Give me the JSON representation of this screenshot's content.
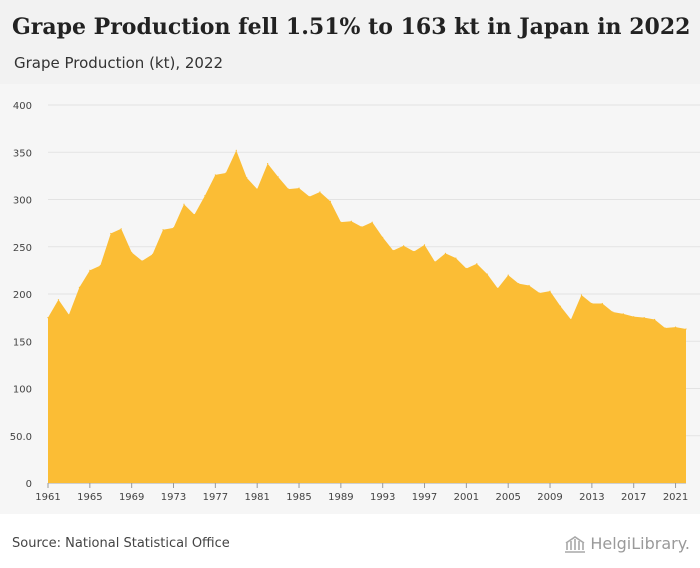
{
  "header": {
    "title": "Grape Production fell 1.51% to 163 kt in Japan in 2022",
    "subtitle": "Grape Production (kt), 2022"
  },
  "footer": {
    "source": "Source: National Statistical Office",
    "brand": "HelgiLibrary."
  },
  "colors": {
    "fill": "#fbbd35",
    "header_bg": "#f2f2f2",
    "plot_bg": "#f6f6f6",
    "grid": "#e3e3e3"
  },
  "chart_data": {
    "type": "area",
    "x": [
      1961,
      1962,
      1963,
      1964,
      1965,
      1966,
      1967,
      1968,
      1969,
      1970,
      1971,
      1972,
      1973,
      1974,
      1975,
      1976,
      1977,
      1978,
      1979,
      1980,
      1981,
      1982,
      1983,
      1984,
      1985,
      1986,
      1987,
      1988,
      1989,
      1990,
      1991,
      1992,
      1993,
      1994,
      1995,
      1996,
      1997,
      1998,
      1999,
      2000,
      2001,
      2002,
      2003,
      2004,
      2005,
      2006,
      2007,
      2008,
      2009,
      2010,
      2011,
      2012,
      2013,
      2014,
      2015,
      2016,
      2017,
      2018,
      2019,
      2020,
      2021,
      2022
    ],
    "values": [
      175,
      194,
      178,
      207,
      225,
      230,
      264,
      269,
      244,
      235,
      242,
      268,
      270,
      295,
      284,
      304,
      326,
      328,
      352,
      323,
      311,
      338,
      324,
      311,
      312,
      303,
      308,
      298,
      276,
      277,
      271,
      276,
      260,
      246,
      251,
      245,
      252,
      234,
      243,
      238,
      227,
      232,
      221,
      206,
      220,
      211,
      209,
      201,
      203,
      187,
      173,
      199,
      190,
      190,
      181,
      179,
      176,
      175,
      173,
      164,
      165,
      163
    ],
    "ylim": [
      0,
      400
    ],
    "yticks": [
      0,
      50,
      100,
      150,
      200,
      250,
      300,
      350,
      400
    ],
    "ytick_labels": [
      "0",
      "50.0",
      "100",
      "150",
      "200",
      "250",
      "300",
      "350",
      "400"
    ],
    "xticks": [
      1961,
      1965,
      1969,
      1973,
      1977,
      1981,
      1985,
      1989,
      1993,
      1997,
      2001,
      2005,
      2009,
      2013,
      2017,
      2021
    ],
    "grid": true,
    "legend": "none"
  }
}
